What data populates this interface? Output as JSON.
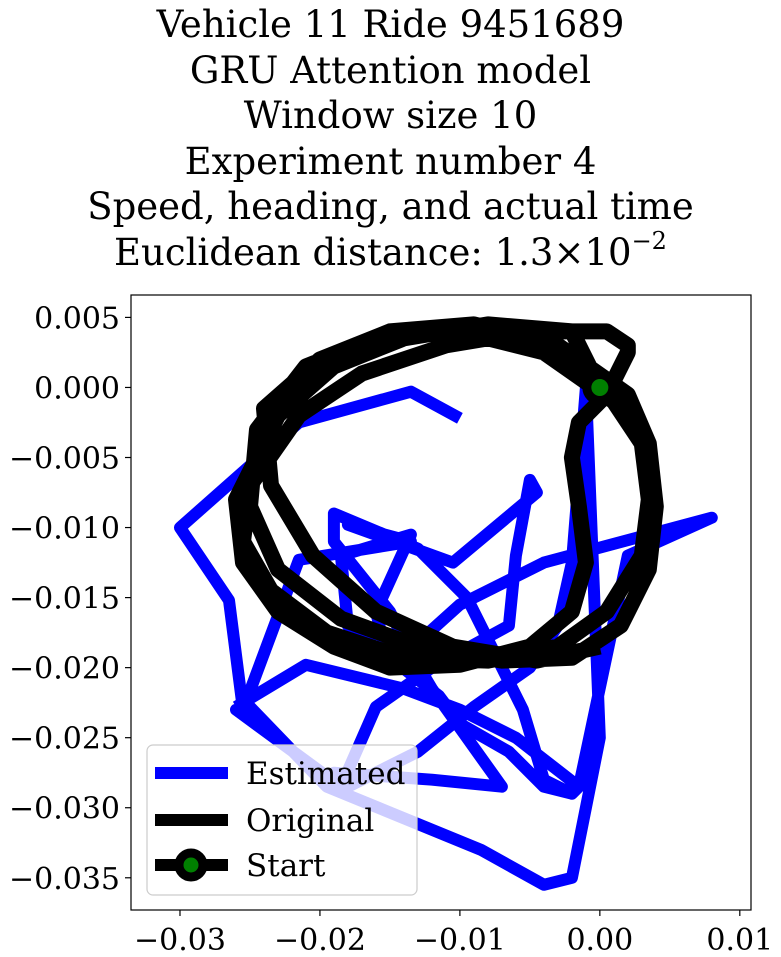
{
  "title_lines": [
    "Vehicle 11 Ride 9451689",
    "GRU Attention model",
    "Window size 10",
    "Experiment number 4",
    "Speed, heading, and actual time"
  ],
  "title_distance": {
    "prefix": "Euclidean distance: ",
    "mantissa": "1.3",
    "times": "×",
    "base": "10",
    "exponent": "−2"
  },
  "chart_data": {
    "type": "line",
    "xlim": [
      -0.0335,
      0.0108
    ],
    "ylim": [
      -0.0373,
      0.0066
    ],
    "xticks": [
      -0.03,
      -0.02,
      -0.01,
      0.0,
      0.01
    ],
    "xtick_labels": [
      "−0.03",
      "−0.02",
      "−0.01",
      "0.00",
      "0.01"
    ],
    "yticks": [
      0.005,
      0.0,
      -0.005,
      -0.01,
      -0.015,
      -0.02,
      -0.025,
      -0.03,
      -0.035
    ],
    "ytick_labels": [
      "0.005",
      "0.000",
      "−0.005",
      "−0.010",
      "−0.015",
      "−0.020",
      "−0.025",
      "−0.030",
      "−0.035"
    ],
    "grid": false,
    "legend": {
      "placement": "lower-left",
      "entries": [
        {
          "label": "Estimated",
          "color": "#0000ff",
          "marker": "none"
        },
        {
          "label": "Original",
          "color": "#000000",
          "marker": "none"
        },
        {
          "label": "Start",
          "color": "#000000",
          "marker": "circle",
          "marker_face": "#008000"
        }
      ]
    },
    "series": [
      {
        "name": "Estimated",
        "color": "#0000ff",
        "x": [
          -0.01,
          -0.0135,
          -0.0215,
          -0.03,
          -0.0265,
          -0.0255,
          -0.0215,
          -0.0135,
          -0.018,
          -0.0105,
          -0.0045,
          -0.005,
          -0.006,
          -0.0065,
          -0.012,
          -0.016,
          -0.0185,
          -0.026,
          -0.025,
          -0.0195,
          -0.0085,
          -0.004,
          -0.002,
          -0.001,
          0.0,
          -0.001,
          -0.002,
          -0.003,
          -0.005,
          -0.009,
          -0.013,
          -0.018,
          -0.019,
          -0.012,
          -0.007,
          -0.012,
          -0.0135,
          -0.015,
          -0.019,
          -0.019,
          -0.013,
          -0.0095,
          -0.0075,
          -0.0055,
          -0.004,
          -0.002,
          -0.0015,
          0.002,
          0.008,
          -0.004,
          -0.01,
          -0.015,
          -0.016,
          -0.0135,
          -0.0185,
          -0.018,
          -0.0115,
          -0.01,
          -0.0065,
          -0.004,
          -0.002,
          -0.0015,
          -0.006,
          -0.01,
          -0.014,
          -0.021,
          -0.026
        ],
        "y": [
          -0.0022,
          -0.0003,
          -0.0025,
          -0.01,
          -0.0152,
          -0.023,
          -0.0123,
          -0.011,
          -0.0098,
          -0.0125,
          -0.0075,
          -0.0066,
          -0.012,
          -0.017,
          -0.02,
          -0.0228,
          -0.0285,
          -0.023,
          -0.0228,
          -0.0285,
          -0.033,
          -0.0355,
          -0.035,
          -0.03,
          -0.025,
          -0.0,
          -0.0125,
          -0.017,
          -0.02,
          -0.0228,
          -0.026,
          -0.0285,
          -0.0275,
          -0.028,
          -0.0285,
          -0.0215,
          -0.019,
          -0.016,
          -0.011,
          -0.009,
          -0.0115,
          -0.015,
          -0.019,
          -0.023,
          -0.028,
          -0.029,
          -0.0285,
          -0.012,
          -0.0093,
          -0.0125,
          -0.0155,
          -0.02,
          -0.016,
          -0.0105,
          -0.012,
          -0.017,
          -0.022,
          -0.024,
          -0.026,
          -0.0285,
          -0.029,
          -0.0285,
          -0.025,
          -0.023,
          -0.0215,
          -0.0198,
          -0.0228
        ]
      },
      {
        "name": "Original",
        "color": "#000000",
        "x": [
          0.0,
          -0.002,
          -0.008,
          -0.014,
          -0.019,
          -0.023,
          -0.026,
          -0.0255,
          -0.023,
          -0.019,
          -0.015,
          -0.01,
          -0.005,
          -0.002,
          -0.001,
          -0.0015,
          -0.002,
          -0.0015,
          0.0005,
          0.0015,
          0.002,
          0.002,
          0.0005,
          -0.005,
          -0.011,
          -0.017,
          -0.0215,
          -0.025,
          -0.0255,
          -0.0235,
          -0.0195,
          -0.014,
          -0.008,
          -0.003,
          0.0005,
          0.003,
          0.0035,
          0.003,
          0.001,
          -0.004,
          -0.01,
          -0.016,
          -0.021,
          -0.0245,
          -0.025,
          -0.023,
          -0.0185,
          -0.013,
          -0.007,
          -0.002,
          0.0015,
          0.0035,
          0.004,
          0.0035,
          0.002,
          -0.003,
          -0.009,
          -0.015,
          -0.02,
          -0.024,
          -0.0235,
          -0.0205,
          -0.016,
          -0.0105,
          -0.0045,
          0.0
        ],
        "y": [
          0.0,
          0.004,
          0.0045,
          0.0035,
          0.0015,
          -0.002,
          -0.008,
          -0.0125,
          -0.016,
          -0.0185,
          -0.02,
          -0.0198,
          -0.0185,
          -0.016,
          -0.0125,
          -0.0085,
          -0.005,
          -0.0025,
          -0.0005,
          0.0015,
          0.0025,
          0.003,
          0.004,
          0.004,
          0.003,
          0.001,
          -0.002,
          -0.007,
          -0.011,
          -0.0145,
          -0.0175,
          -0.0193,
          -0.0195,
          -0.0185,
          -0.016,
          -0.012,
          -0.008,
          -0.004,
          -0.001,
          0.0025,
          0.004,
          0.0035,
          0.0015,
          -0.003,
          -0.0085,
          -0.013,
          -0.0165,
          -0.0185,
          -0.0195,
          -0.0193,
          -0.017,
          -0.013,
          -0.0085,
          -0.004,
          -0.0005,
          0.003,
          0.0045,
          0.004,
          0.002,
          -0.0015,
          -0.007,
          -0.012,
          -0.016,
          -0.0185,
          -0.0195,
          -0.0185
        ]
      },
      {
        "name": "Start",
        "color": "#000000",
        "marker_face": "#008000",
        "x": [
          0.0
        ],
        "y": [
          0.0
        ]
      }
    ]
  }
}
